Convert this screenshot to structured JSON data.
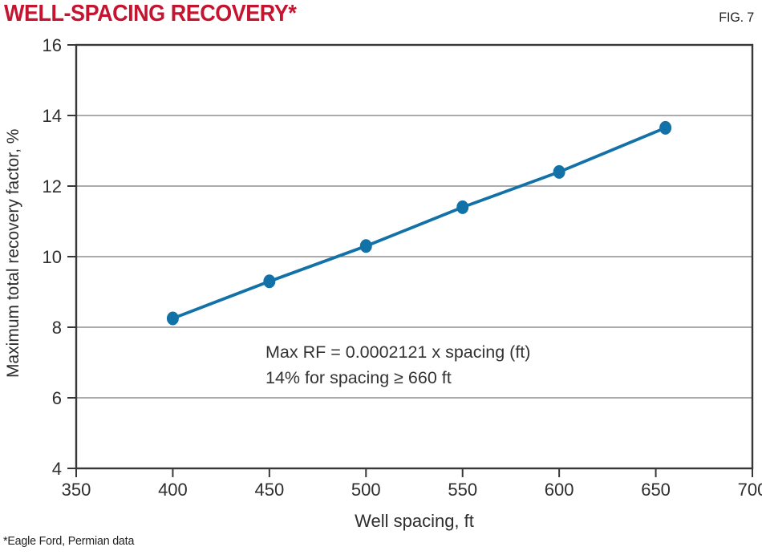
{
  "header": {
    "title": "WELL-SPACING RECOVERY*",
    "fig_label": "FIG. 7"
  },
  "footnote": "*Eagle Ford, Permian data",
  "colors": {
    "title_red": "#c41430",
    "series_blue": "#1272a8",
    "grid_gray": "#909090",
    "axis_dark": "#383838",
    "tick_label": "#2e2e2e"
  },
  "chart_data": {
    "type": "line",
    "title": "WELL-SPACING RECOVERY*",
    "xlabel": "Well spacing, ft",
    "ylabel": "Maximum total recovery factor, %",
    "xlim": [
      350,
      700
    ],
    "ylim": [
      4,
      16
    ],
    "x_ticks": [
      350,
      400,
      450,
      500,
      550,
      600,
      650,
      700
    ],
    "y_ticks": [
      4,
      6,
      8,
      10,
      12,
      14,
      16
    ],
    "grid": "horizontal",
    "legend": "none",
    "series": [
      {
        "name": "Maximum total recovery factor",
        "marker": "circle",
        "color": "#1272a8",
        "x": [
          400,
          450,
          500,
          550,
          600,
          655
        ],
        "y": [
          8.25,
          9.3,
          10.3,
          11.4,
          12.4,
          13.65
        ]
      }
    ],
    "annotation": {
      "line1": "Max RF = 0.0002121 x spacing (ft)",
      "line2": "14% for spacing ≥ 660 ft"
    }
  }
}
